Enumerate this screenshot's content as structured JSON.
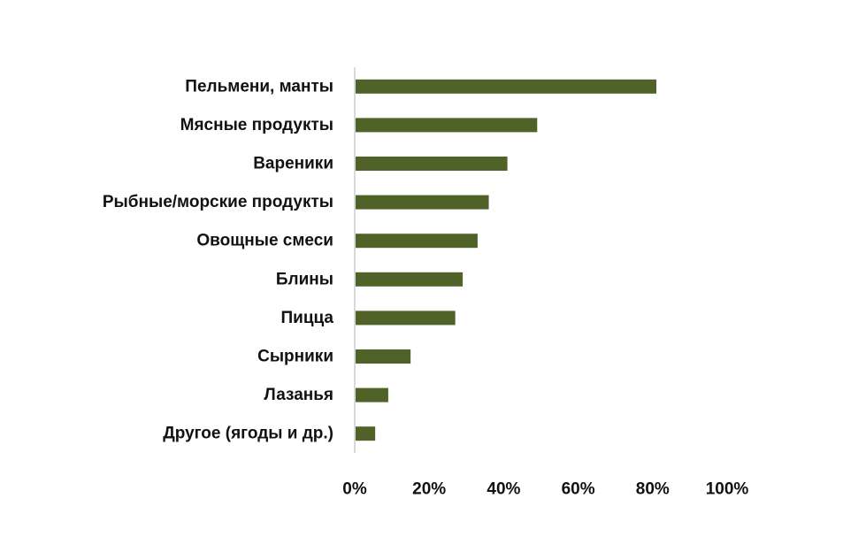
{
  "chart_data": {
    "type": "bar",
    "orientation": "horizontal",
    "categories": [
      "Пельмени, манты",
      "Мясные продукты",
      "Вареники",
      "Рыбные/морские продукты",
      "Овощные смеси",
      "Блины",
      "Пицца",
      "Сырники",
      "Лазанья",
      "Другое (ягоды и др.)"
    ],
    "values": [
      81,
      49,
      41,
      36,
      33,
      29,
      27,
      15,
      9,
      5.5
    ],
    "value_unit": "%",
    "xlim": [
      0,
      100
    ],
    "x_ticks": [
      0,
      20,
      40,
      60,
      80,
      100
    ],
    "x_tick_labels": [
      "0%",
      "20%",
      "40%",
      "60%",
      "80%",
      "100%"
    ],
    "bar_color": "#4f6228",
    "axis_color": "#d9d9d9",
    "grid": false,
    "legend": "none"
  }
}
